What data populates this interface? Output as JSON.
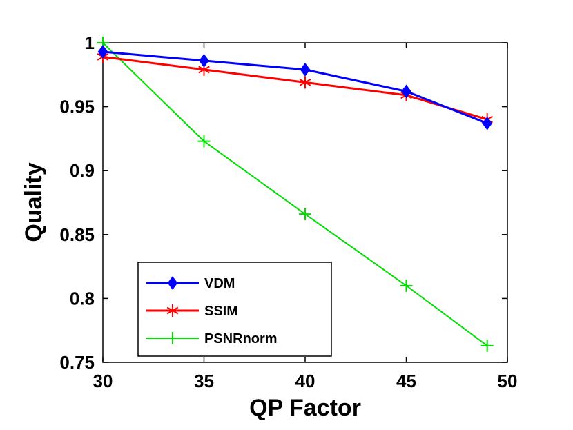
{
  "chart_data": {
    "type": "line",
    "title": "",
    "xlabel": "QP Factor",
    "ylabel": "Quality",
    "xlim": [
      30,
      50
    ],
    "ylim": [
      0.75,
      1
    ],
    "xticks": [
      30,
      35,
      40,
      45,
      50
    ],
    "yticks": [
      0.75,
      0.8,
      0.85,
      0.9,
      0.95,
      1
    ],
    "xtick_labels": [
      "30",
      "35",
      "40",
      "45",
      "50"
    ],
    "ytick_labels": [
      "0.75",
      "0.8",
      "0.85",
      "0.9",
      "0.95",
      "1"
    ],
    "grid": false,
    "legend_position": "bottom-left",
    "series": [
      {
        "name": "VDM",
        "color": "#0000ff",
        "marker": "diamond",
        "x": [
          30,
          35,
          40,
          45,
          49
        ],
        "values": [
          0.993,
          0.986,
          0.979,
          0.962,
          0.937
        ]
      },
      {
        "name": "SSIM",
        "color": "#ff0000",
        "marker": "asterisk",
        "x": [
          30,
          35,
          40,
          45,
          49
        ],
        "values": [
          0.989,
          0.979,
          0.969,
          0.959,
          0.94
        ]
      },
      {
        "name": "PSNRnorm",
        "color": "#00dd00",
        "marker": "plus",
        "x": [
          30,
          35,
          40,
          45,
          49
        ],
        "values": [
          1.0,
          0.923,
          0.866,
          0.81,
          0.763
        ]
      }
    ]
  }
}
